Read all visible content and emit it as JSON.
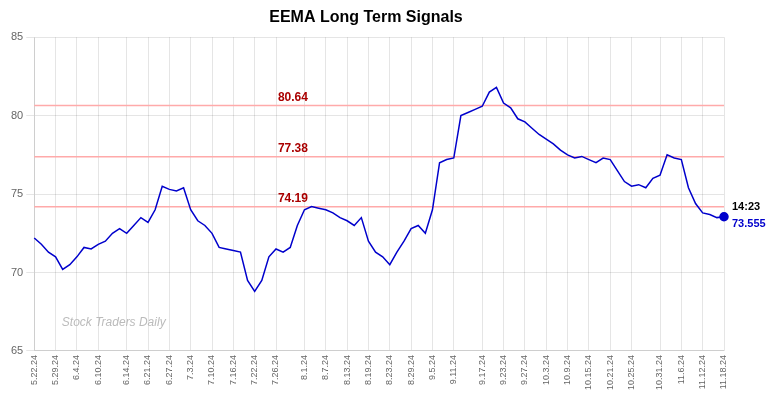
{
  "chart_data": {
    "type": "line",
    "title": "EEMA Long Term Signals",
    "categories": [
      "5.22.24",
      null,
      null,
      "5.29.24",
      null,
      null,
      "6.4.24",
      null,
      null,
      "6.10.24",
      null,
      null,
      null,
      "6.14.24",
      null,
      null,
      "6.21.24",
      null,
      null,
      "6.27.24",
      null,
      null,
      "7.3.24",
      null,
      null,
      "7.10.24",
      null,
      null,
      "7.16.24",
      null,
      null,
      "7.22.24",
      null,
      null,
      "7.26.24",
      null,
      null,
      null,
      "8.1.24",
      null,
      null,
      "8.7.24",
      null,
      null,
      "8.13.24",
      null,
      null,
      "8.19.24",
      null,
      null,
      "8.23.24",
      null,
      null,
      "8.29.24",
      null,
      null,
      "9.5.24",
      null,
      null,
      "9.11.24",
      null,
      null,
      null,
      "9.17.24",
      null,
      null,
      "9.23.24",
      null,
      null,
      "9.27.24",
      null,
      null,
      "10.3.24",
      null,
      null,
      "10.9.24",
      null,
      null,
      "10.15.24",
      null,
      null,
      "10.21.24",
      null,
      null,
      "10.25.24",
      null,
      null,
      null,
      "10.31.24",
      null,
      null,
      "11.6.24",
      null,
      null,
      "11.12.24",
      null,
      null,
      "11.18.24"
    ],
    "values": [
      72.2,
      71.8,
      71.3,
      71.0,
      70.2,
      70.5,
      71.0,
      71.6,
      71.5,
      71.8,
      72.0,
      72.5,
      72.8,
      72.5,
      73.0,
      73.5,
      73.2,
      74.0,
      75.5,
      75.3,
      75.2,
      75.4,
      74.0,
      73.3,
      73.0,
      72.5,
      71.6,
      71.5,
      71.4,
      71.3,
      69.5,
      68.8,
      69.5,
      71.0,
      71.5,
      71.3,
      71.6,
      73.0,
      74.0,
      74.2,
      74.1,
      74.0,
      73.8,
      73.5,
      73.3,
      73.0,
      73.5,
      72.0,
      71.3,
      71.0,
      70.5,
      71.3,
      72.0,
      72.8,
      73.0,
      72.5,
      74.0,
      77.0,
      77.2,
      77.3,
      80.0,
      80.2,
      80.4,
      80.6,
      81.5,
      81.8,
      80.8,
      80.5,
      79.8,
      79.6,
      79.2,
      78.8,
      78.5,
      78.2,
      77.8,
      77.5,
      77.3,
      77.4,
      77.2,
      77.0,
      77.3,
      77.2,
      76.5,
      75.8,
      75.5,
      75.6,
      75.4,
      76.0,
      76.2,
      77.5,
      77.3,
      77.2,
      75.4,
      74.4,
      73.8,
      73.7,
      73.5,
      73.555
    ],
    "color": "#0000cc",
    "ylim": [
      65,
      85
    ],
    "yticks": [
      65,
      70,
      75,
      80,
      85
    ],
    "grid": true,
    "reference_lines": [
      {
        "value": 80.64,
        "label": "80.64",
        "color": "#ffaaaa",
        "label_color": "#aa0000"
      },
      {
        "value": 77.38,
        "label": "77.38",
        "color": "#ffaaaa",
        "label_color": "#aa0000"
      },
      {
        "value": 74.19,
        "label": "74.19",
        "color": "#ffaaaa",
        "label_color": "#aa0000"
      }
    ],
    "annotations": [
      {
        "text": "14:23"
      },
      {
        "text": "73.555",
        "color": "#0000cc"
      }
    ],
    "watermark": "Stock Traders Daily"
  }
}
